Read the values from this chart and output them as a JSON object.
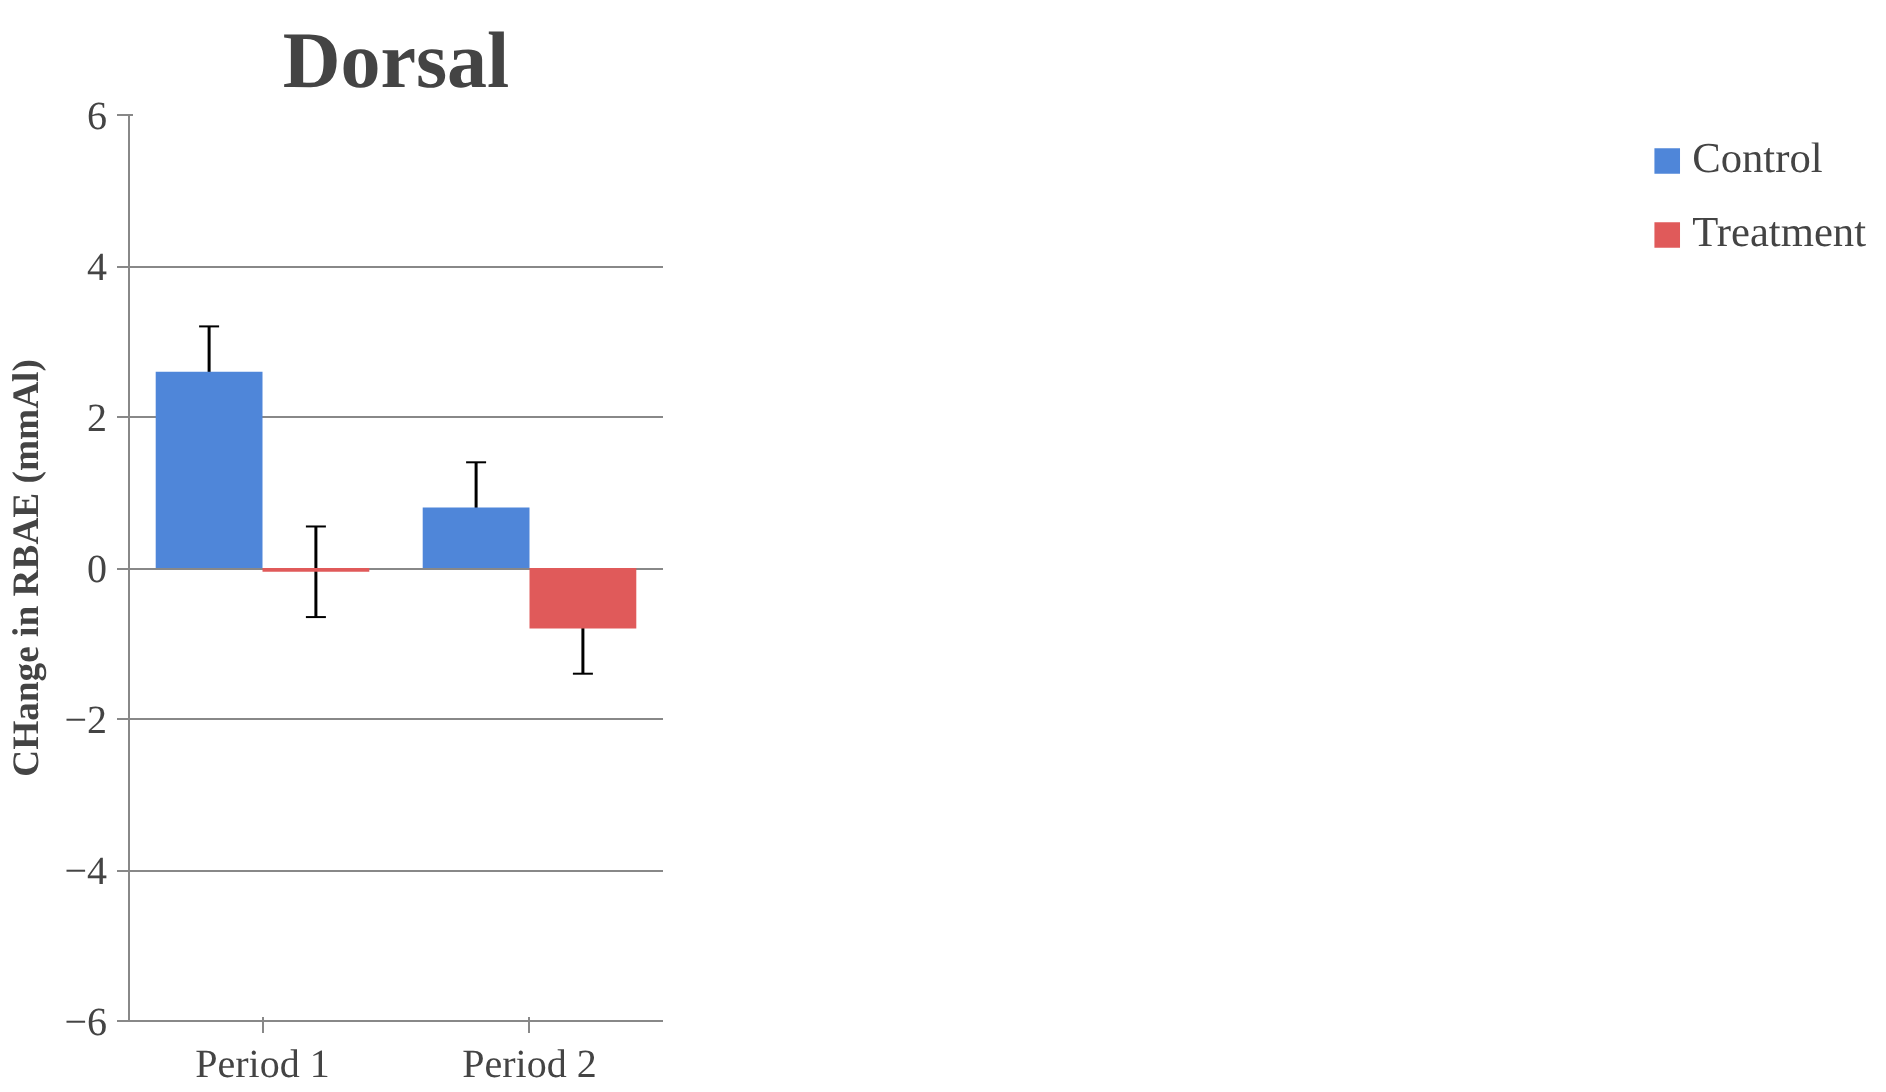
{
  "chart_data": {
    "type": "bar",
    "title": "Dorsal",
    "ylabel": "CHange in RBAE (mmAl)",
    "categories": [
      "Period 1",
      "Period 2"
    ],
    "series": [
      {
        "name": "Control",
        "color": "#4f86d9",
        "values": [
          2.6,
          0.8
        ],
        "errors": [
          0.6,
          0.6
        ]
      },
      {
        "name": "Treatment",
        "color": "#e05a5a",
        "values": [
          -0.05,
          -0.8
        ],
        "errors": [
          0.6,
          0.6
        ]
      }
    ],
    "ylim": [
      -6,
      6
    ],
    "yticks": [
      -6,
      -4,
      -2,
      0,
      2,
      4,
      6
    ],
    "grid": "y",
    "legend": "right"
  }
}
